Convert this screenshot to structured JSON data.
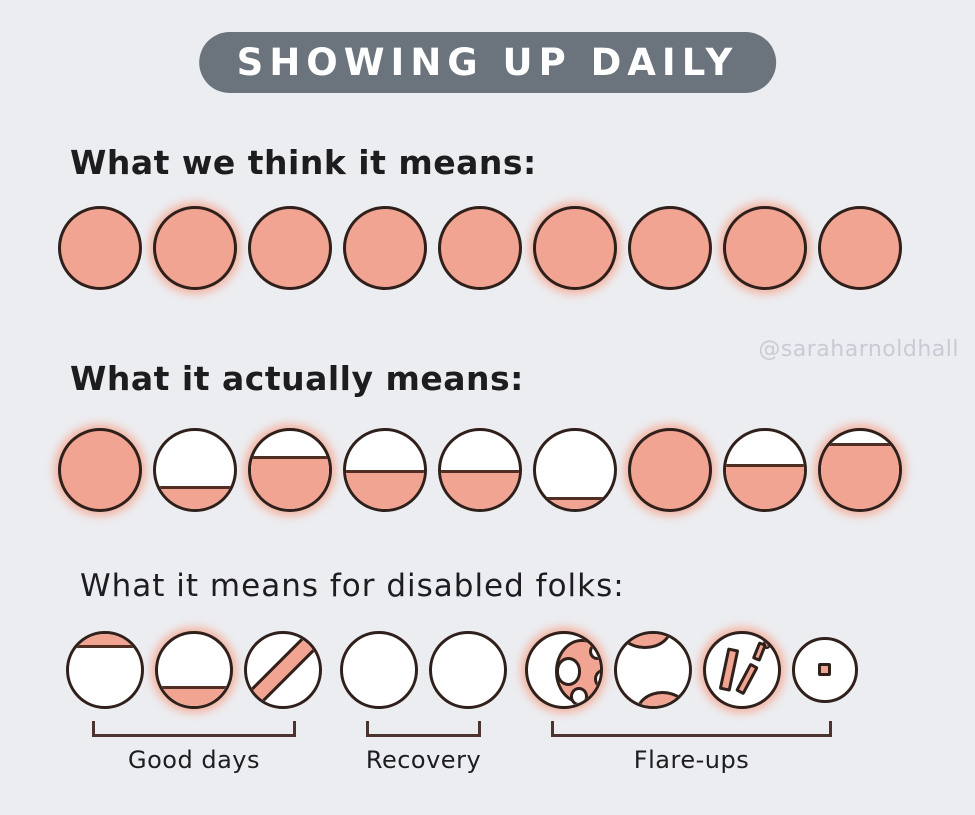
{
  "colors": {
    "bg": "#ecedf1",
    "salmon": "#f2a492",
    "glow": "#f3b3a1",
    "ink": "#30201b",
    "line": "#4f2f24",
    "bracket": "#4b332e",
    "title_bg": "#6b747c",
    "title_fg": "#ffffff",
    "text": "#1d1d20",
    "watermark": "#c8cbd4"
  },
  "title": {
    "text": "SHOWING UP DAILY"
  },
  "watermark": {
    "text": "@saraharnoldhall"
  },
  "sections": [
    {
      "id": "think",
      "label": "What we think it means:",
      "circles": [
        {
          "type": "full"
        },
        {
          "type": "full",
          "glow": true
        },
        {
          "type": "full"
        },
        {
          "type": "full"
        },
        {
          "type": "full"
        },
        {
          "type": "full",
          "glow": true
        },
        {
          "type": "full"
        },
        {
          "type": "full",
          "glow": true
        },
        {
          "type": "full"
        }
      ]
    },
    {
      "id": "actually",
      "label": "What it actually means:",
      "circles": [
        {
          "type": "full",
          "glow": true
        },
        {
          "type": "fill-bottom",
          "level": 30
        },
        {
          "type": "fill-bottom",
          "level": 68,
          "glow": true
        },
        {
          "type": "fill-bottom",
          "level": 50
        },
        {
          "type": "fill-bottom",
          "level": 50
        },
        {
          "type": "fill-bottom",
          "level": 15
        },
        {
          "type": "full",
          "glow": true
        },
        {
          "type": "fill-bottom",
          "level": 58
        },
        {
          "type": "fill-bottom",
          "level": 85,
          "glow": true
        }
      ]
    },
    {
      "id": "disabled",
      "label": "What it means for disabled folks:",
      "groups": [
        {
          "label": "Good days",
          "circles": [
            {
              "type": "fill-top",
              "level": 20
            },
            {
              "type": "fill-bottom",
              "level": 28,
              "glow": true
            },
            {
              "type": "diagonal"
            }
          ]
        },
        {
          "label": "Recovery",
          "circles": [
            {
              "type": "empty"
            },
            {
              "type": "empty"
            }
          ]
        },
        {
          "label": "Flare-ups",
          "circles": [
            {
              "type": "spots",
              "glow": true
            },
            {
              "type": "crescents"
            },
            {
              "type": "sticks",
              "glow": true
            },
            {
              "type": "square",
              "size": 66
            }
          ]
        }
      ]
    }
  ]
}
